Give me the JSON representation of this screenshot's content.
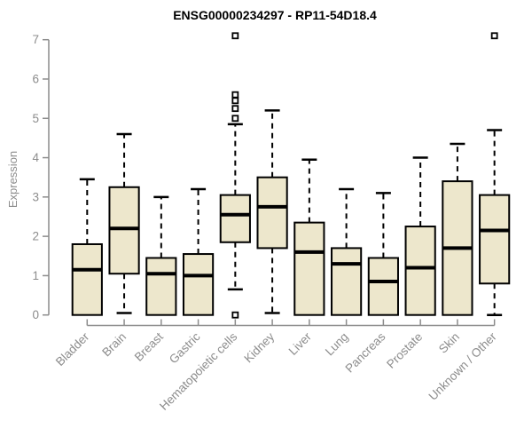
{
  "title": "ENSG00000234297 - RP11-54D18.4",
  "chart_data": {
    "type": "boxplot",
    "title": "ENSG00000234297 - RP11-54D18.4",
    "xlabel": "",
    "ylabel": "Expression",
    "ylim": [
      0,
      7
    ],
    "y_ticks": [
      0,
      1,
      2,
      3,
      4,
      5,
      6,
      7
    ],
    "grid": false,
    "legend": false,
    "categories": [
      "Bladder",
      "Brain",
      "Breast",
      "Gastric",
      "Hematopoietic cells",
      "Kidney",
      "Liver",
      "Lung",
      "Pancreas",
      "Prostate",
      "Skin",
      "Unknown / Other"
    ],
    "series": [
      {
        "category": "Bladder",
        "whisker_low": null,
        "q1": 0,
        "median": 1.15,
        "q3": 1.8,
        "whisker_high": 3.45,
        "outliers": []
      },
      {
        "category": "Brain",
        "whisker_low": 0.05,
        "q1": 1.05,
        "median": 2.2,
        "q3": 3.25,
        "whisker_high": 4.6,
        "outliers": []
      },
      {
        "category": "Breast",
        "whisker_low": null,
        "q1": 0,
        "median": 1.05,
        "q3": 1.45,
        "whisker_high": 3.0,
        "outliers": []
      },
      {
        "category": "Gastric",
        "whisker_low": null,
        "q1": 0,
        "median": 1.0,
        "q3": 1.55,
        "whisker_high": 3.2,
        "outliers": []
      },
      {
        "category": "Hematopoietic cells",
        "whisker_low": 0.65,
        "q1": 1.85,
        "median": 2.55,
        "q3": 3.05,
        "whisker_high": 4.85,
        "outliers": [
          7.1,
          5.6,
          5.45,
          5.25,
          5.0,
          0
        ]
      },
      {
        "category": "Kidney",
        "whisker_low": 0.05,
        "q1": 1.7,
        "median": 2.75,
        "q3": 3.5,
        "whisker_high": 5.2,
        "outliers": []
      },
      {
        "category": "Liver",
        "whisker_low": null,
        "q1": 0,
        "median": 1.6,
        "q3": 2.35,
        "whisker_high": 3.95,
        "outliers": []
      },
      {
        "category": "Lung",
        "whisker_low": null,
        "q1": 0,
        "median": 1.3,
        "q3": 1.7,
        "whisker_high": 3.2,
        "outliers": []
      },
      {
        "category": "Pancreas",
        "whisker_low": null,
        "q1": 0,
        "median": 0.85,
        "q3": 1.45,
        "whisker_high": 3.1,
        "outliers": []
      },
      {
        "category": "Prostate",
        "whisker_low": null,
        "q1": 0,
        "median": 1.2,
        "q3": 2.25,
        "whisker_high": 4.0,
        "outliers": []
      },
      {
        "category": "Skin",
        "whisker_low": null,
        "q1": 0,
        "median": 1.7,
        "q3": 3.4,
        "whisker_high": 4.35,
        "outliers": []
      },
      {
        "category": "Unknown / Other",
        "whisker_low": 0,
        "q1": 0.8,
        "median": 2.15,
        "q3": 3.05,
        "whisker_high": 4.7,
        "outliers": [
          7.1
        ]
      }
    ]
  },
  "colors": {
    "background": "#FFFFFF",
    "box_fill": "#EDE7CC",
    "box_border": "#000000",
    "median": "#000000",
    "whisker": "#000000",
    "outlier_stroke": "#000000",
    "outlier_fill": "#FFFFFF",
    "axis": "#8C8C8C",
    "tick_label": "#8C8C8C",
    "title": "#000000"
  }
}
